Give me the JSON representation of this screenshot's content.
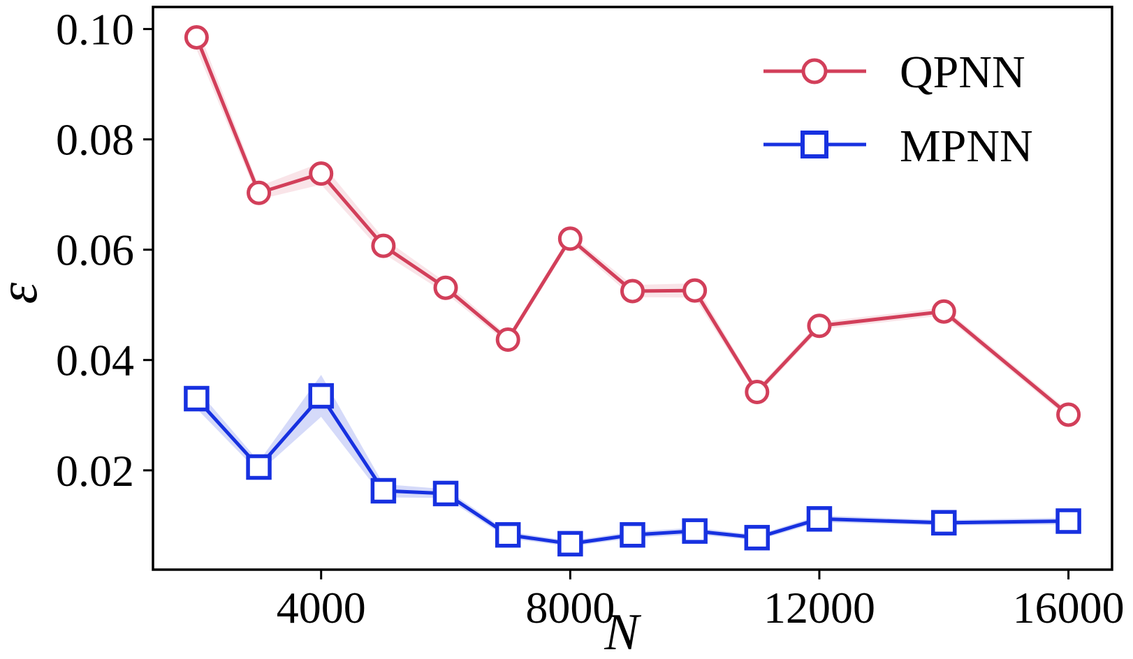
{
  "figure": {
    "background": "#ffffff",
    "xlabel": "N",
    "ylabel": "ε",
    "legend": {
      "position": "upper right",
      "entries": [
        {
          "label": "QPNN",
          "marker": "circle",
          "color": "#d23f5a"
        },
        {
          "label": "MPNN",
          "marker": "square",
          "color": "#1731e0"
        }
      ]
    }
  },
  "chart_data": {
    "type": "line",
    "title": "",
    "xlabel": "N",
    "ylabel": "ε",
    "grid": false,
    "legend_position": "upper right",
    "xlim": [
      1300,
      16700
    ],
    "ylim": [
      0.002,
      0.104
    ],
    "x_ticks": [
      4000,
      8000,
      12000,
      16000
    ],
    "x_tick_labels": [
      "4000",
      "8000",
      "12000",
      "16000"
    ],
    "y_ticks": [
      0.02,
      0.04,
      0.06,
      0.08,
      0.1
    ],
    "y_tick_labels": [
      "0.02",
      "0.04",
      "0.06",
      "0.08",
      "0.10"
    ],
    "x": [
      2000,
      3000,
      4000,
      5000,
      6000,
      7000,
      8000,
      9000,
      10000,
      11000,
      12000,
      14000,
      16000
    ],
    "series": [
      {
        "name": "QPNN",
        "color": "#d23f5a",
        "band_color": "#d23f5a",
        "band_opacity": 0.14,
        "marker": "circle",
        "values": [
          0.0985,
          0.0703,
          0.0738,
          0.0607,
          0.0531,
          0.0437,
          0.062,
          0.0525,
          0.0526,
          0.0342,
          0.0462,
          0.0488,
          0.0301
        ],
        "band_halfwidth": [
          0.0022,
          0.0012,
          0.002,
          0.0014,
          0.001,
          0.0007,
          0.0007,
          0.0011,
          0.0013,
          0.0007,
          0.0007,
          0.0007,
          0.0007
        ]
      },
      {
        "name": "MPNN",
        "color": "#1731e0",
        "band_color": "#1731e0",
        "band_opacity": 0.18,
        "marker": "square",
        "values": [
          0.033,
          0.0206,
          0.0335,
          0.0163,
          0.0158,
          0.0083,
          0.0067,
          0.0083,
          0.009,
          0.0078,
          0.0112,
          0.0105,
          0.0108
        ],
        "band_halfwidth": [
          0.0018,
          0.001,
          0.0038,
          0.0012,
          0.0008,
          0.0006,
          0.0005,
          0.0006,
          0.0006,
          0.0005,
          0.0006,
          0.0005,
          0.0006
        ]
      }
    ]
  }
}
